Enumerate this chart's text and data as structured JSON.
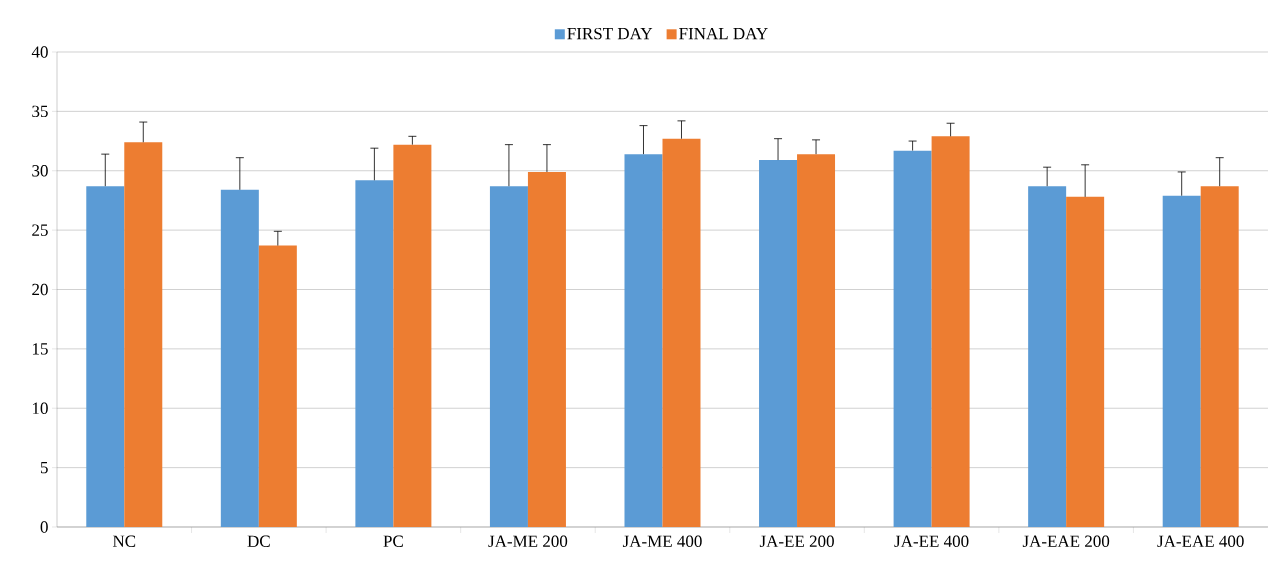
{
  "chart_data": {
    "type": "bar",
    "categories": [
      "NC",
      "DC",
      "PC",
      "JA-ME 200",
      "JA-ME 400",
      "JA-EE 200",
      "JA-EE 400",
      "JA-EAE 200",
      "JA-EAE 400"
    ],
    "series": [
      {
        "name": "FIRST DAY",
        "color": "#5b9bd5",
        "values": [
          28.7,
          28.4,
          29.2,
          28.7,
          31.4,
          30.9,
          31.7,
          28.7,
          27.9
        ],
        "errors": [
          [
            28.7,
            31.4
          ],
          [
            28.4,
            31.1
          ],
          [
            29.2,
            31.9
          ],
          [
            28.7,
            32.2
          ],
          [
            31.4,
            33.8
          ],
          [
            30.9,
            32.7
          ],
          [
            31.7,
            32.5
          ],
          [
            28.7,
            30.3
          ],
          [
            27.9,
            29.9
          ]
        ]
      },
      {
        "name": "FINAL DAY",
        "color": "#ed7d31",
        "values": [
          32.4,
          23.7,
          32.2,
          29.9,
          32.7,
          31.4,
          32.9,
          27.8,
          28.7
        ],
        "errors": [
          [
            32.4,
            34.1
          ],
          [
            23.7,
            24.9
          ],
          [
            32.2,
            32.9
          ],
          [
            29.9,
            32.2
          ],
          [
            32.7,
            34.2
          ],
          [
            31.4,
            32.6
          ],
          [
            32.9,
            34.0
          ],
          [
            27.8,
            30.5
          ],
          [
            28.7,
            31.1
          ]
        ]
      }
    ],
    "ylim": [
      0,
      40
    ],
    "yticks": [
      0,
      5,
      10,
      15,
      20,
      25,
      30,
      35,
      40
    ],
    "grid": "y",
    "legend": "top"
  }
}
